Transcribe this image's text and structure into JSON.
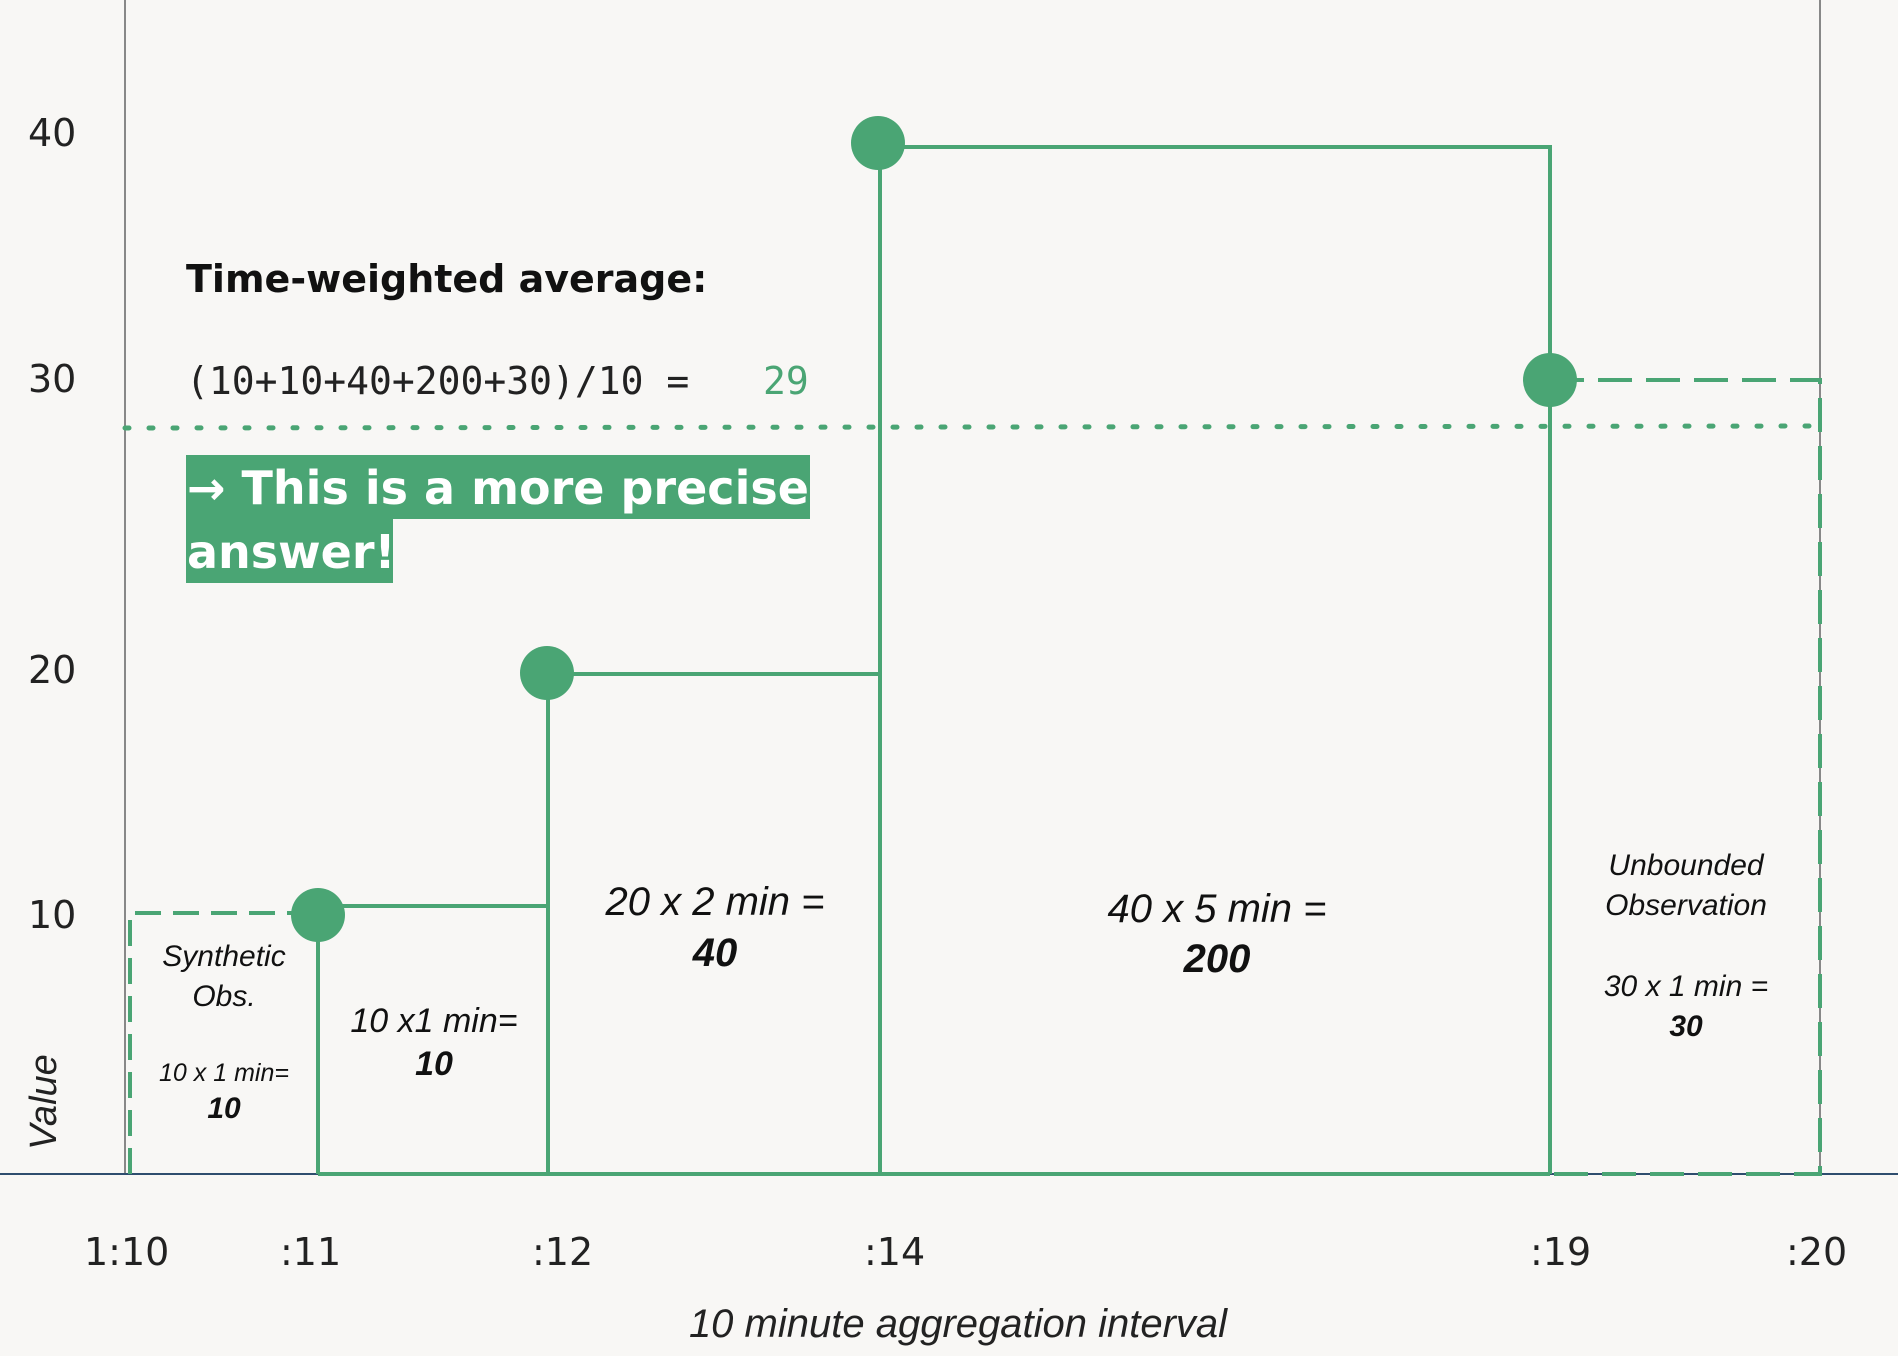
{
  "colors": {
    "accent": "#4aa574",
    "highlight_bg": "#4aa574",
    "highlight_text": "#ffffff",
    "background": "#f8f7f5",
    "axis": "#555555",
    "baseline": "#2e4d6e"
  },
  "y_axis": {
    "label": "Value",
    "ticks": [
      "10",
      "20",
      "30",
      "40"
    ]
  },
  "x_axis": {
    "label": "10 minute aggregation interval",
    "ticks": [
      "1:10",
      ":11",
      ":12",
      ":14",
      ":19",
      ":20"
    ]
  },
  "heading": "Time-weighted average:",
  "formula": {
    "expression": "(10+10+40+200+30)/10 =",
    "result": "29"
  },
  "callout": {
    "line1": "→ This is a more precise",
    "line2": "answer!"
  },
  "segments": [
    {
      "title1": "Synthetic",
      "title2": "Obs.",
      "calc": "10 x 1 min=",
      "product": "10"
    },
    {
      "calc": "10 x1 min=",
      "product": "10"
    },
    {
      "calc": "20 x 2 min =",
      "product": "40"
    },
    {
      "calc": "40 x 5 min =",
      "product": "200"
    },
    {
      "title1": "Unbounded",
      "title2": "Observation",
      "calc": "30 x 1 min =",
      "product": "30"
    }
  ],
  "chart_data": {
    "type": "step",
    "x_unit": "minutes after 1:10",
    "observations": [
      {
        "x": 1,
        "value": 10
      },
      {
        "x": 2,
        "value": 20
      },
      {
        "x": 4,
        "value": 40
      },
      {
        "x": 9,
        "value": 30
      }
    ],
    "synthetic_observation": {
      "x": 0,
      "value": 10
    },
    "average": 29,
    "xlim": [
      0,
      10
    ]
  }
}
